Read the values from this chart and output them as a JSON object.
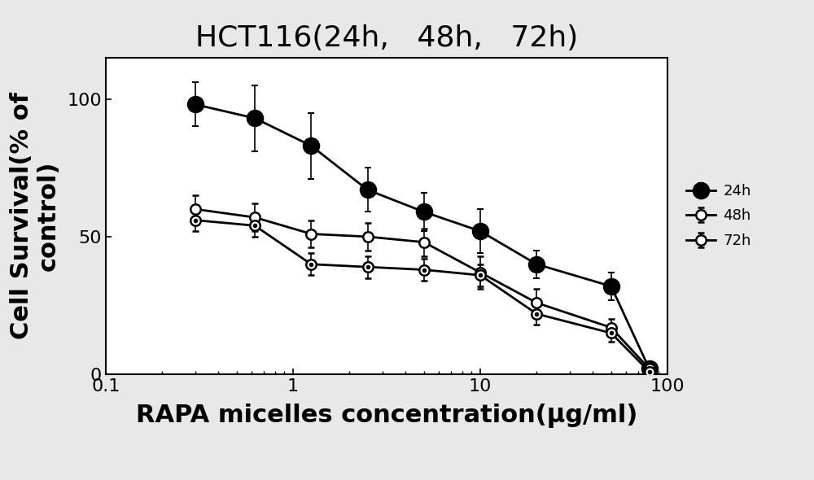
{
  "title": "HCT116(24h,   48h,   72h)",
  "xlabel": "RAPA micelles concentration(μg/ml)",
  "ylabel": "Cell Survival(% of\ncontrol)",
  "xlim": [
    0.1,
    100
  ],
  "ylim": [
    0,
    115
  ],
  "yticks": [
    0,
    50,
    100
  ],
  "series": [
    {
      "label": "24h",
      "x": [
        0.3,
        0.625,
        1.25,
        2.5,
        5,
        10,
        20,
        50,
        80
      ],
      "y": [
        98,
        93,
        83,
        67,
        59,
        52,
        40,
        32,
        2
      ],
      "yerr": [
        8,
        12,
        12,
        8,
        7,
        8,
        5,
        5,
        2
      ],
      "marker": "o",
      "markersize": 14,
      "fillstyle": "full",
      "color": "black",
      "linewidth": 2.0
    },
    {
      "label": "48h",
      "x": [
        0.3,
        0.625,
        1.25,
        2.5,
        5,
        10,
        20,
        50,
        80
      ],
      "y": [
        60,
        57,
        51,
        50,
        48,
        37,
        26,
        17,
        2
      ],
      "yerr": [
        5,
        5,
        5,
        5,
        5,
        6,
        5,
        3,
        2
      ],
      "marker": "o",
      "markersize": 9,
      "fillstyle": "none",
      "color": "black",
      "linewidth": 2.0
    },
    {
      "label": "72h",
      "x": [
        0.3,
        0.625,
        1.25,
        2.5,
        5,
        10,
        20,
        50,
        80
      ],
      "y": [
        56,
        54,
        40,
        39,
        38,
        36,
        22,
        15,
        1
      ],
      "yerr": [
        4,
        4,
        4,
        4,
        4,
        4,
        4,
        3,
        1
      ],
      "marker": "o",
      "markersize": 9,
      "fillstyle": "none",
      "color": "black",
      "linewidth": 2.0,
      "inner_dot": true
    }
  ],
  "fig_facecolor": "#e8e8e8",
  "plot_facecolor": "#ffffff",
  "legend_fontsize": 13,
  "title_fontsize": 26,
  "axis_label_fontsize": 22,
  "tick_fontsize": 16
}
